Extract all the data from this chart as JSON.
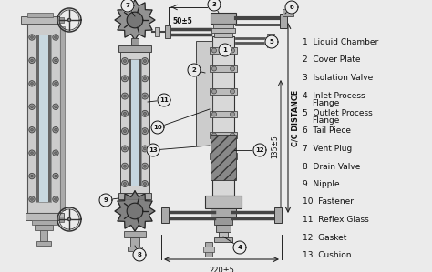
{
  "bg_color": "#ebebeb",
  "legend_items": [
    {
      "num": 1,
      "text": "Liquid Chamber"
    },
    {
      "num": 2,
      "text": "Cover Plate"
    },
    {
      "num": 3,
      "text": "Isolation Valve"
    },
    {
      "num": 4,
      "text": "Inlet Process\nFlange"
    },
    {
      "num": 5,
      "text": "Outlet Process\nFlange"
    },
    {
      "num": 6,
      "text": "Tail Piece"
    },
    {
      "num": 7,
      "text": "Vent Plug"
    },
    {
      "num": 8,
      "text": "Drain Valve"
    },
    {
      "num": 9,
      "text": "Nipple"
    },
    {
      "num": 10,
      "text": "Fastener"
    },
    {
      "num": 11,
      "text": "Reflex Glass"
    },
    {
      "num": 12,
      "text": "Gasket"
    },
    {
      "num": 13,
      "text": "Cushion"
    }
  ],
  "dim_220": "220±5",
  "dim_50": "50±5",
  "dim_135": "135±5",
  "dim_label": "C/C DISTANCE",
  "line_color": "#222222",
  "text_color": "#111111",
  "callout_color": "#111111",
  "font_size_legend": 6.5,
  "font_size_dim": 5.5,
  "font_size_callout": 5.0
}
